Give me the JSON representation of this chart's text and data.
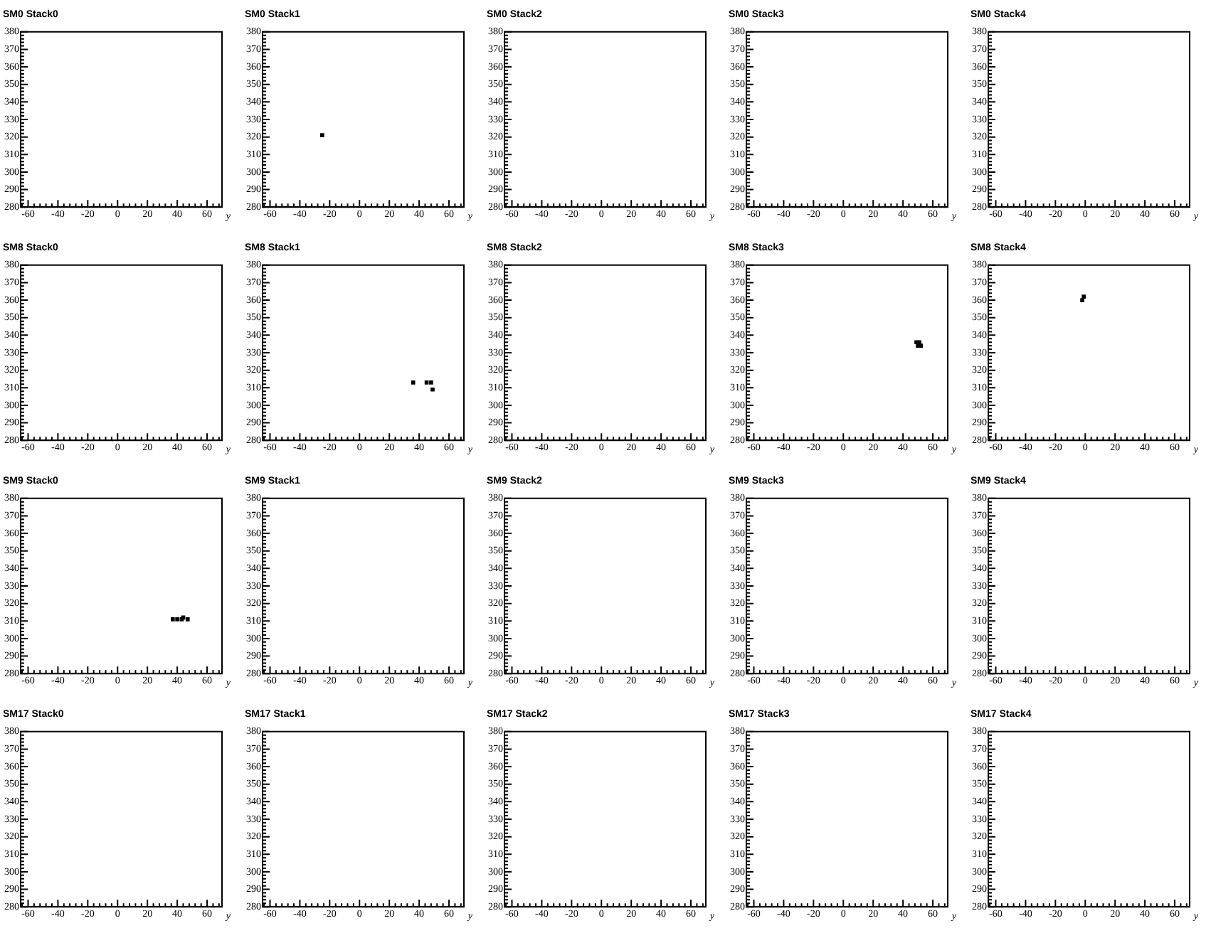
{
  "chart_data": [
    {
      "type": "scatter",
      "title": "SM0 Stack0",
      "xlabel": "y",
      "xlim": [
        -65,
        70
      ],
      "xticks": [
        -60,
        -40,
        -20,
        0,
        20,
        40,
        60
      ],
      "ylim": [
        280,
        380
      ],
      "yticks": [
        280,
        290,
        300,
        310,
        320,
        330,
        340,
        350,
        360,
        370,
        380
      ],
      "grid": false
    },
    {
      "type": "scatter",
      "title": "SM0 Stack1",
      "xlabel": "y",
      "xlim": [
        -65,
        70
      ],
      "xticks": [
        -60,
        -40,
        -20,
        0,
        20,
        40,
        60
      ],
      "ylim": [
        280,
        380
      ],
      "yticks": [
        280,
        290,
        300,
        310,
        320,
        330,
        340,
        350,
        360,
        370,
        380
      ],
      "marker": "square",
      "grid": false,
      "series": [
        {
          "color": "#000000",
          "x": [
            -25
          ],
          "values": [
            321
          ]
        }
      ]
    },
    {
      "type": "scatter",
      "title": "SM0 Stack2",
      "xlabel": "y",
      "xlim": [
        -65,
        70
      ],
      "xticks": [
        -60,
        -40,
        -20,
        0,
        20,
        40,
        60
      ],
      "ylim": [
        280,
        380
      ],
      "yticks": [
        280,
        290,
        300,
        310,
        320,
        330,
        340,
        350,
        360,
        370,
        380
      ],
      "grid": false
    },
    {
      "type": "scatter",
      "title": "SM0 Stack3",
      "xlabel": "y",
      "xlim": [
        -65,
        70
      ],
      "xticks": [
        -60,
        -40,
        -20,
        0,
        20,
        40,
        60
      ],
      "ylim": [
        280,
        380
      ],
      "yticks": [
        280,
        290,
        300,
        310,
        320,
        330,
        340,
        350,
        360,
        370,
        380
      ],
      "grid": false
    },
    {
      "type": "scatter",
      "title": "SM0 Stack4",
      "xlabel": "y",
      "xlim": [
        -65,
        70
      ],
      "xticks": [
        -60,
        -40,
        -20,
        0,
        20,
        40,
        60
      ],
      "ylim": [
        280,
        380
      ],
      "yticks": [
        280,
        290,
        300,
        310,
        320,
        330,
        340,
        350,
        360,
        370,
        380
      ],
      "grid": false
    },
    {
      "type": "scatter",
      "title": "SM8 Stack0",
      "xlabel": "y",
      "xlim": [
        -65,
        70
      ],
      "xticks": [
        -60,
        -40,
        -20,
        0,
        20,
        40,
        60
      ],
      "ylim": [
        280,
        380
      ],
      "yticks": [
        280,
        290,
        300,
        310,
        320,
        330,
        340,
        350,
        360,
        370,
        380
      ],
      "grid": false
    },
    {
      "type": "scatter",
      "title": "SM8 Stack1",
      "xlabel": "y",
      "xlim": [
        -65,
        70
      ],
      "xticks": [
        -60,
        -40,
        -20,
        0,
        20,
        40,
        60
      ],
      "ylim": [
        280,
        380
      ],
      "yticks": [
        280,
        290,
        300,
        310,
        320,
        330,
        340,
        350,
        360,
        370,
        380
      ],
      "marker": "square",
      "grid": false,
      "series": [
        {
          "color": "#000000",
          "x": [
            36,
            45,
            48,
            49
          ],
          "values": [
            313,
            313,
            313,
            309
          ]
        }
      ]
    },
    {
      "type": "scatter",
      "title": "SM8 Stack2",
      "xlabel": "y",
      "xlim": [
        -65,
        70
      ],
      "xticks": [
        -60,
        -40,
        -20,
        0,
        20,
        40,
        60
      ],
      "ylim": [
        280,
        380
      ],
      "yticks": [
        280,
        290,
        300,
        310,
        320,
        330,
        340,
        350,
        360,
        370,
        380
      ],
      "grid": false
    },
    {
      "type": "scatter",
      "title": "SM8 Stack3",
      "xlabel": "y",
      "xlim": [
        -65,
        70
      ],
      "xticks": [
        -60,
        -40,
        -20,
        0,
        20,
        40,
        60
      ],
      "ylim": [
        280,
        380
      ],
      "yticks": [
        280,
        290,
        300,
        310,
        320,
        330,
        340,
        350,
        360,
        370,
        380
      ],
      "marker": "square",
      "grid": false,
      "series": [
        {
          "color": "#000000",
          "x": [
            49,
            51,
            50,
            52
          ],
          "values": [
            336,
            336,
            334,
            334
          ]
        }
      ]
    },
    {
      "type": "scatter",
      "title": "SM8 Stack4",
      "xlabel": "y",
      "xlim": [
        -65,
        70
      ],
      "xticks": [
        -60,
        -40,
        -20,
        0,
        20,
        40,
        60
      ],
      "ylim": [
        280,
        380
      ],
      "yticks": [
        280,
        290,
        300,
        310,
        320,
        330,
        340,
        350,
        360,
        370,
        380
      ],
      "marker": "square",
      "grid": false,
      "series": [
        {
          "color": "#000000",
          "x": [
            -1,
            -2
          ],
          "values": [
            362,
            360
          ]
        }
      ]
    },
    {
      "type": "scatter",
      "title": "SM9 Stack0",
      "xlabel": "y",
      "xlim": [
        -65,
        70
      ],
      "xticks": [
        -60,
        -40,
        -20,
        0,
        20,
        40,
        60
      ],
      "ylim": [
        280,
        380
      ],
      "yticks": [
        280,
        290,
        300,
        310,
        320,
        330,
        340,
        350,
        360,
        370,
        380
      ],
      "marker": "square",
      "grid": false,
      "series": [
        {
          "color": "#000000",
          "x": [
            37,
            40,
            43,
            44,
            47
          ],
          "values": [
            311,
            311,
            311,
            312,
            311
          ]
        }
      ]
    },
    {
      "type": "scatter",
      "title": "SM9 Stack1",
      "xlabel": "y",
      "xlim": [
        -65,
        70
      ],
      "xticks": [
        -60,
        -40,
        -20,
        0,
        20,
        40,
        60
      ],
      "ylim": [
        280,
        380
      ],
      "yticks": [
        280,
        290,
        300,
        310,
        320,
        330,
        340,
        350,
        360,
        370,
        380
      ],
      "grid": false
    },
    {
      "type": "scatter",
      "title": "SM9 Stack2",
      "xlabel": "y",
      "xlim": [
        -65,
        70
      ],
      "xticks": [
        -60,
        -40,
        -20,
        0,
        20,
        40,
        60
      ],
      "ylim": [
        280,
        380
      ],
      "yticks": [
        280,
        290,
        300,
        310,
        320,
        330,
        340,
        350,
        360,
        370,
        380
      ],
      "grid": false
    },
    {
      "type": "scatter",
      "title": "SM9 Stack3",
      "xlabel": "y",
      "xlim": [
        -65,
        70
      ],
      "xticks": [
        -60,
        -40,
        -20,
        0,
        20,
        40,
        60
      ],
      "ylim": [
        280,
        380
      ],
      "yticks": [
        280,
        290,
        300,
        310,
        320,
        330,
        340,
        350,
        360,
        370,
        380
      ],
      "grid": false
    },
    {
      "type": "scatter",
      "title": "SM9 Stack4",
      "xlabel": "y",
      "xlim": [
        -65,
        70
      ],
      "xticks": [
        -60,
        -40,
        -20,
        0,
        20,
        40,
        60
      ],
      "ylim": [
        280,
        380
      ],
      "yticks": [
        280,
        290,
        300,
        310,
        320,
        330,
        340,
        350,
        360,
        370,
        380
      ],
      "grid": false
    },
    {
      "type": "scatter",
      "title": "SM17 Stack0",
      "xlabel": "y",
      "xlim": [
        -65,
        70
      ],
      "xticks": [
        -60,
        -40,
        -20,
        0,
        20,
        40,
        60
      ],
      "ylim": [
        280,
        380
      ],
      "yticks": [
        280,
        290,
        300,
        310,
        320,
        330,
        340,
        350,
        360,
        370,
        380
      ],
      "grid": false
    },
    {
      "type": "scatter",
      "title": "SM17 Stack1",
      "xlabel": "y",
      "xlim": [
        -65,
        70
      ],
      "xticks": [
        -60,
        -40,
        -20,
        0,
        20,
        40,
        60
      ],
      "ylim": [
        280,
        380
      ],
      "yticks": [
        280,
        290,
        300,
        310,
        320,
        330,
        340,
        350,
        360,
        370,
        380
      ],
      "grid": false
    },
    {
      "type": "scatter",
      "title": "SM17 Stack2",
      "xlabel": "y",
      "xlim": [
        -65,
        70
      ],
      "xticks": [
        -60,
        -40,
        -20,
        0,
        20,
        40,
        60
      ],
      "ylim": [
        280,
        380
      ],
      "yticks": [
        280,
        290,
        300,
        310,
        320,
        330,
        340,
        350,
        360,
        370,
        380
      ],
      "grid": false
    },
    {
      "type": "scatter",
      "title": "SM17 Stack3",
      "xlabel": "y",
      "xlim": [
        -65,
        70
      ],
      "xticks": [
        -60,
        -40,
        -20,
        0,
        20,
        40,
        60
      ],
      "ylim": [
        280,
        380
      ],
      "yticks": [
        280,
        290,
        300,
        310,
        320,
        330,
        340,
        350,
        360,
        370,
        380
      ],
      "grid": false
    },
    {
      "type": "scatter",
      "title": "SM17 Stack4",
      "xlabel": "y",
      "xlim": [
        -65,
        70
      ],
      "xticks": [
        -60,
        -40,
        -20,
        0,
        20,
        40,
        60
      ],
      "ylim": [
        280,
        380
      ],
      "yticks": [
        280,
        290,
        300,
        310,
        320,
        330,
        340,
        350,
        360,
        370,
        380
      ],
      "grid": false
    }
  ]
}
